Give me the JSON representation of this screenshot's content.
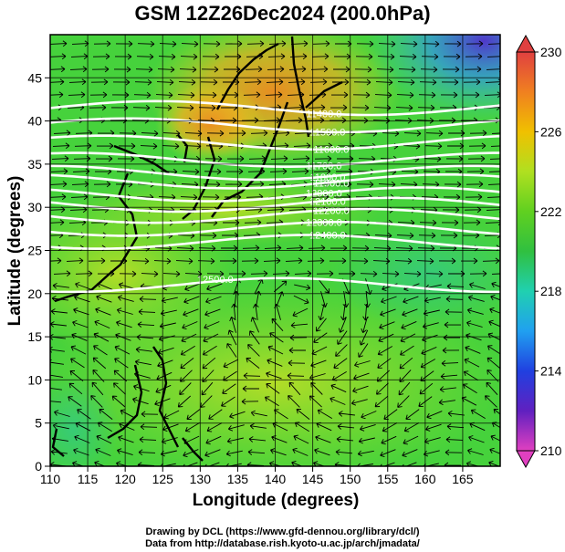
{
  "title": "GSM 12Z26Dec2024 (200.0hPa)",
  "xaxis": {
    "label": "Longitude (degrees)",
    "ticks": [
      "110",
      "115",
      "120",
      "125",
      "130",
      "135",
      "140",
      "145",
      "150",
      "155",
      "160",
      "165"
    ],
    "range": [
      110,
      170
    ]
  },
  "yaxis": {
    "label": "Latitude  (degrees)",
    "ticks": [
      "0",
      "5",
      "10",
      "15",
      "20",
      "25",
      "30",
      "35",
      "40",
      "45"
    ],
    "range": [
      0,
      50
    ]
  },
  "colorbar": {
    "labels": [
      "230",
      "226",
      "222",
      "218",
      "214",
      "210"
    ],
    "range": [
      210,
      230
    ],
    "colors": [
      "#e040c0",
      "#6020c0",
      "#2040e0",
      "#20a0f0",
      "#20d0b0",
      "#30c040",
      "#60d020",
      "#b0e020",
      "#f0c000",
      "#f08020",
      "#e04040"
    ]
  },
  "contours": {
    "labels": [
      "11400.0",
      "11500.0",
      "11600.0",
      "11700.0",
      "11800.0",
      "11900.0",
      "12000.0",
      "12100.0",
      "12200.0",
      "12300.0",
      "12400.0",
      "12500.0"
    ]
  },
  "credits": [
    "Drawing by DCL (https://www.gfd-dennou.org/library/dcl/)",
    "Data from http://database.rish.kyoto-u.ac.jp/arch/jmadata/"
  ]
}
